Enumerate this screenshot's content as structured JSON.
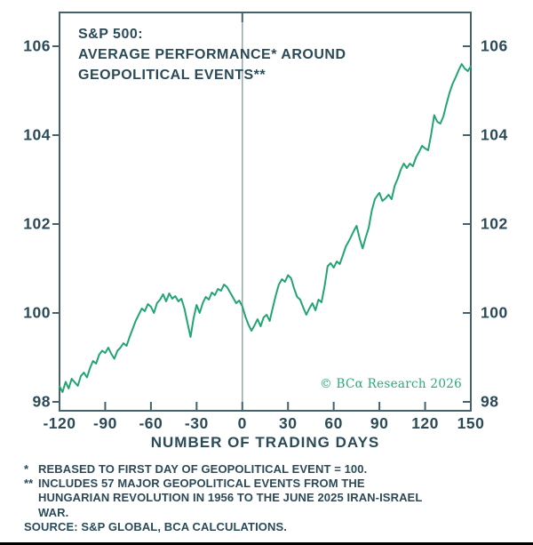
{
  "chart": {
    "title_lines": [
      "S&P 500:",
      "AVERAGE PERFORMANCE* AROUND",
      "GEOPOLITICAL EVENTS**"
    ],
    "watermark": "© BCα Research 2026",
    "colors": {
      "line": "#21a571",
      "text": "#2b4a57",
      "frame": "#44616c",
      "event_line": "#9aa5aa",
      "watermark": "#27a97e"
    }
  },
  "chart_data": {
    "type": "line",
    "title": "S&P 500: AVERAGE PERFORMANCE* AROUND GEOPOLITICAL EVENTS**",
    "xlabel": "NUMBER OF TRADING DAYS",
    "ylabel": "",
    "xlim": [
      -120,
      150
    ],
    "ylim": [
      97.8,
      106.76
    ],
    "x_ticks": [
      -120,
      -90,
      -60,
      -30,
      0,
      30,
      60,
      90,
      120,
      150
    ],
    "y_ticks": [
      98,
      100,
      102,
      104,
      106
    ],
    "grid": false,
    "legend": "none",
    "event_day_line": 0,
    "series": [
      {
        "name": "S&P 500 average performance (rebased to 100 at event day)",
        "points": [
          [
            -120,
            98.35
          ],
          [
            -118,
            98.22
          ],
          [
            -116,
            98.45
          ],
          [
            -114,
            98.3
          ],
          [
            -112,
            98.52
          ],
          [
            -110,
            98.44
          ],
          [
            -108,
            98.36
          ],
          [
            -106,
            98.58
          ],
          [
            -104,
            98.66
          ],
          [
            -102,
            98.55
          ],
          [
            -100,
            98.76
          ],
          [
            -98,
            98.92
          ],
          [
            -96,
            98.86
          ],
          [
            -94,
            99.06
          ],
          [
            -92,
            99.15
          ],
          [
            -90,
            99.1
          ],
          [
            -88,
            99.22
          ],
          [
            -86,
            99.08
          ],
          [
            -84,
            98.97
          ],
          [
            -82,
            99.15
          ],
          [
            -80,
            99.22
          ],
          [
            -78,
            99.32
          ],
          [
            -76,
            99.26
          ],
          [
            -74,
            99.46
          ],
          [
            -72,
            99.64
          ],
          [
            -70,
            99.82
          ],
          [
            -68,
            99.96
          ],
          [
            -66,
            100.1
          ],
          [
            -64,
            100.04
          ],
          [
            -62,
            100.2
          ],
          [
            -60,
            100.14
          ],
          [
            -58,
            100.0
          ],
          [
            -56,
            100.22
          ],
          [
            -54,
            100.3
          ],
          [
            -52,
            100.42
          ],
          [
            -50,
            100.26
          ],
          [
            -48,
            100.44
          ],
          [
            -46,
            100.32
          ],
          [
            -44,
            100.38
          ],
          [
            -42,
            100.26
          ],
          [
            -40,
            100.32
          ],
          [
            -38,
            100.1
          ],
          [
            -36,
            99.78
          ],
          [
            -34,
            99.46
          ],
          [
            -32,
            99.88
          ],
          [
            -30,
            100.18
          ],
          [
            -28,
            100.0
          ],
          [
            -26,
            100.22
          ],
          [
            -24,
            100.36
          ],
          [
            -22,
            100.3
          ],
          [
            -20,
            100.46
          ],
          [
            -18,
            100.4
          ],
          [
            -16,
            100.54
          ],
          [
            -14,
            100.5
          ],
          [
            -12,
            100.64
          ],
          [
            -10,
            100.58
          ],
          [
            -8,
            100.46
          ],
          [
            -6,
            100.34
          ],
          [
            -4,
            100.22
          ],
          [
            -2,
            100.28
          ],
          [
            0,
            100.15
          ],
          [
            2,
            99.92
          ],
          [
            4,
            99.74
          ],
          [
            6,
            99.6
          ],
          [
            8,
            99.72
          ],
          [
            10,
            99.86
          ],
          [
            12,
            99.7
          ],
          [
            14,
            99.9
          ],
          [
            16,
            99.96
          ],
          [
            18,
            99.82
          ],
          [
            20,
            100.12
          ],
          [
            22,
            100.4
          ],
          [
            24,
            100.64
          ],
          [
            26,
            100.76
          ],
          [
            28,
            100.7
          ],
          [
            30,
            100.85
          ],
          [
            32,
            100.78
          ],
          [
            34,
            100.55
          ],
          [
            36,
            100.36
          ],
          [
            38,
            100.3
          ],
          [
            40,
            100.12
          ],
          [
            42,
            99.96
          ],
          [
            44,
            100.1
          ],
          [
            46,
            100.22
          ],
          [
            48,
            100.06
          ],
          [
            50,
            100.3
          ],
          [
            52,
            100.24
          ],
          [
            54,
            100.6
          ],
          [
            56,
            101.05
          ],
          [
            58,
            101.12
          ],
          [
            60,
            101.02
          ],
          [
            62,
            101.16
          ],
          [
            64,
            101.1
          ],
          [
            66,
            101.3
          ],
          [
            68,
            101.5
          ],
          [
            70,
            101.62
          ],
          [
            72,
            101.76
          ],
          [
            74,
            101.9
          ],
          [
            75,
            101.96
          ],
          [
            77,
            101.68
          ],
          [
            79,
            101.45
          ],
          [
            81,
            101.7
          ],
          [
            83,
            101.92
          ],
          [
            85,
            102.3
          ],
          [
            87,
            102.56
          ],
          [
            89,
            102.66
          ],
          [
            90,
            102.7
          ],
          [
            92,
            102.52
          ],
          [
            94,
            102.58
          ],
          [
            96,
            102.66
          ],
          [
            98,
            102.56
          ],
          [
            100,
            102.86
          ],
          [
            102,
            103.02
          ],
          [
            104,
            103.22
          ],
          [
            106,
            103.36
          ],
          [
            108,
            103.26
          ],
          [
            110,
            103.36
          ],
          [
            112,
            103.3
          ],
          [
            114,
            103.5
          ],
          [
            116,
            103.62
          ],
          [
            118,
            103.76
          ],
          [
            120,
            103.7
          ],
          [
            122,
            103.66
          ],
          [
            124,
            104.02
          ],
          [
            126,
            104.45
          ],
          [
            128,
            104.3
          ],
          [
            130,
            104.26
          ],
          [
            132,
            104.42
          ],
          [
            134,
            104.7
          ],
          [
            136,
            104.95
          ],
          [
            138,
            105.15
          ],
          [
            140,
            105.3
          ],
          [
            142,
            105.46
          ],
          [
            144,
            105.6
          ],
          [
            146,
            105.5
          ],
          [
            148,
            105.44
          ],
          [
            150,
            105.55
          ]
        ]
      }
    ]
  },
  "footnotes": {
    "rows": [
      {
        "marker": "*",
        "lines": [
          "REBASED TO FIRST DAY OF GEOPOLITICAL EVENT = 100.",
          "",
          ""
        ]
      },
      {
        "marker": "**",
        "lines": [
          "INCLUDES 57 MAJOR GEOPOLITICAL EVENTS FROM THE",
          "HUNGARIAN REVOLUTION IN 1956 TO THE JUNE 2025 IRAN-ISRAEL",
          "WAR."
        ]
      },
      {
        "marker": "",
        "lines": [
          "SOURCE: S&P GLOBAL, BCA CALCULATIONS.",
          "",
          ""
        ]
      }
    ]
  }
}
